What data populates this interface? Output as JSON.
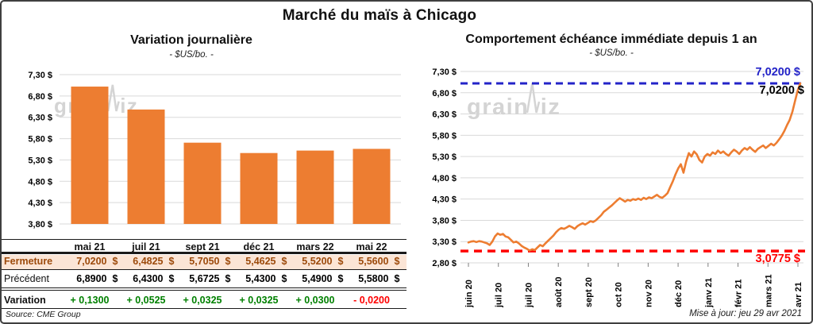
{
  "title": "Marché du maïs à Chicago",
  "watermark": {
    "part1": "grain",
    "part2": "iz"
  },
  "left_chart": {
    "title": "Variation journalière",
    "subtitle": "- $US/bo. -"
  },
  "right_chart": {
    "title": "Comportement échéance immédiate depuis 1 an",
    "subtitle": "- $US/bo. -",
    "max_label": "7,0200 $",
    "last_value_label": "7,0200 $",
    "min_label": "3,0775 $"
  },
  "table": {
    "columns": [
      "mai 21",
      "juil 21",
      "sept 21",
      "déc 21",
      "mars 22",
      "mai 22"
    ],
    "rows": [
      {
        "label": "Fermeture",
        "style": "close",
        "unit": "$",
        "values": [
          "7,0200",
          "6,4825",
          "5,7050",
          "5,4625",
          "5,5200",
          "5,5600"
        ]
      },
      {
        "label": "Précédent",
        "style": "previous",
        "unit": "$",
        "values": [
          "6,8900",
          "6,4300",
          "5,6725",
          "5,4300",
          "5,4900",
          "5,5800"
        ]
      },
      {
        "label": "Variation",
        "style": "variation",
        "unit": null,
        "values": [
          "+ 0,1300",
          "+ 0,0525",
          "+ 0,0325",
          "+ 0,0325",
          "+ 0,0300",
          "- 0,0200"
        ]
      }
    ]
  },
  "footer": {
    "source": "Source: CME Group",
    "updated": "Mise à jour: jeu 29 avr 2021"
  },
  "colors": {
    "bar_orange": "#ED7D31",
    "line_orange": "#ED7D31",
    "grid": "#D9D9D9",
    "max_line_blue": "#2323C8",
    "min_line_red": "#FF0000",
    "close_row_bg": "#FBE5D6",
    "close_row_text": "#9C4A0B",
    "variation_up_green": "#008000",
    "variation_down_red": "#FF0000",
    "watermark_gray": "#D4D4D4"
  },
  "chart_data": [
    {
      "type": "bar",
      "title": "Variation journalière",
      "subtitle": "- $US/bo. -",
      "categories": [
        "mai 21",
        "juil 21",
        "sept 21",
        "déc 21",
        "mars 22",
        "mai 22"
      ],
      "values": [
        7.02,
        6.4825,
        5.705,
        5.4625,
        5.52,
        5.56
      ],
      "ylim": [
        3.8,
        7.3
      ],
      "ytick_step": 0.5,
      "yticks": [
        "7,30 $",
        "6,80 $",
        "6,30 $",
        "5,80 $",
        "5,30 $",
        "4,80 $",
        "4,30 $",
        "3,80 $"
      ],
      "grid": true,
      "bar_color": "#ED7D31"
    },
    {
      "type": "line",
      "title": "Comportement échéance immédiate depuis 1 an",
      "subtitle": "- $US/bo. -",
      "x_categories": [
        "juin 20",
        "juil 20",
        "juil 20",
        "août 20",
        "sept 20",
        "oct 20",
        "nov 20",
        "déc 20",
        "janv 21",
        "févr 21",
        "mars 21",
        "avr 21"
      ],
      "ylim": [
        2.8,
        7.3
      ],
      "ytick_step": 0.5,
      "yticks": [
        "7,30 $",
        "6,80 $",
        "6,30 $",
        "5,80 $",
        "5,30 $",
        "4,80 $",
        "4,30 $",
        "3,80 $",
        "3,30 $",
        "2,80 $"
      ],
      "grid": true,
      "line_color": "#ED7D31",
      "max_line": {
        "value": 7.02,
        "label": "7,0200 $",
        "color": "#2323C8",
        "style": "dashed"
      },
      "min_line": {
        "value": 3.0775,
        "label": "3,0775 $",
        "color": "#FF0000",
        "style": "dashed"
      },
      "last_point_label": "7,0200 $",
      "series": [
        {
          "name": "échéance immédiate",
          "values": [
            3.28,
            3.3,
            3.31,
            3.29,
            3.31,
            3.3,
            3.28,
            3.26,
            3.22,
            3.3,
            3.42,
            3.49,
            3.46,
            3.48,
            3.42,
            3.4,
            3.34,
            3.28,
            3.3,
            3.26,
            3.2,
            3.16,
            3.13,
            3.09,
            3.12,
            3.1,
            3.16,
            3.22,
            3.19,
            3.26,
            3.32,
            3.38,
            3.44,
            3.52,
            3.58,
            3.62,
            3.6,
            3.63,
            3.67,
            3.64,
            3.6,
            3.66,
            3.7,
            3.73,
            3.7,
            3.74,
            3.78,
            3.76,
            3.8,
            3.86,
            3.92,
            4.0,
            4.05,
            4.1,
            4.15,
            4.21,
            4.27,
            4.32,
            4.28,
            4.24,
            4.28,
            4.26,
            4.3,
            4.28,
            4.31,
            4.28,
            4.33,
            4.3,
            4.34,
            4.32,
            4.36,
            4.4,
            4.35,
            4.33,
            4.38,
            4.44,
            4.58,
            4.72,
            4.88,
            5.02,
            5.12,
            4.92,
            5.18,
            5.38,
            5.3,
            5.42,
            5.35,
            5.22,
            5.16,
            5.3,
            5.36,
            5.32,
            5.4,
            5.36,
            5.44,
            5.38,
            5.42,
            5.36,
            5.32,
            5.4,
            5.46,
            5.42,
            5.36,
            5.44,
            5.5,
            5.46,
            5.52,
            5.46,
            5.41,
            5.48,
            5.52,
            5.56,
            5.5,
            5.55,
            5.6,
            5.56,
            5.62,
            5.7,
            5.79,
            5.9,
            6.04,
            6.16,
            6.35,
            6.6,
            6.85,
            7.02
          ]
        }
      ]
    }
  ]
}
